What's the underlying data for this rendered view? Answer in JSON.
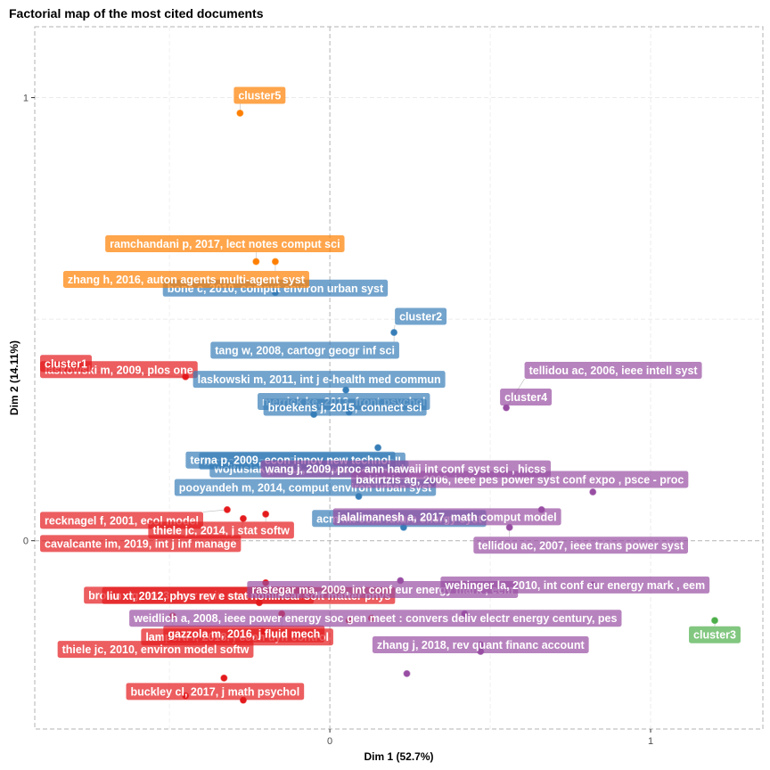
{
  "chart_data": {
    "type": "scatter",
    "title": "Factorial map of the most cited documents",
    "xlabel": "Dim 1 (52.7%)",
    "ylabel": "Dim 2 (14.11%)",
    "xlim": [
      -0.92,
      1.35
    ],
    "ylim": [
      -0.425,
      1.16
    ],
    "x_ticks": [
      0,
      1
    ],
    "y_ticks": [
      0,
      1
    ],
    "x_tick_labels": [
      "0",
      "1"
    ],
    "y_tick_labels": [
      "0",
      "1"
    ],
    "grid": true,
    "legend": "none",
    "series": [
      {
        "name": "cluster1",
        "color": "#e41a1c",
        "points": [
          {
            "x": -0.45,
            "y": 0.37
          },
          {
            "x": -0.32,
            "y": 0.07
          },
          {
            "x": -0.2,
            "y": 0.06
          },
          {
            "x": -0.27,
            "y": 0.05
          },
          {
            "x": -0.2,
            "y": -0.095
          },
          {
            "x": -0.22,
            "y": -0.14
          },
          {
            "x": -0.15,
            "y": -0.165
          },
          {
            "x": -0.49,
            "y": -0.17
          },
          {
            "x": -0.21,
            "y": -0.205
          },
          {
            "x": -0.33,
            "y": -0.31
          },
          {
            "x": -0.45,
            "y": -0.35
          },
          {
            "x": -0.27,
            "y": -0.36
          },
          {
            "x": 0.06,
            "y": -0.18
          },
          {
            "x": 0.13,
            "y": -0.175
          }
        ],
        "labels": [
          "laskowski m, 2009, plos one",
          "recknagel f, 2001, ecol model",
          "thiele jc, 2014, j stat softw",
          "cavalcante im, 2019, int j inf manage",
          "brown dg, 2013, curr opin environ sustain",
          "liu xt, 2012, phys rev e stat nonlinear soft matter phys",
          "lamperti f, 2018, j econ dyn control",
          "gazzola m, 2016, j fluid mech",
          "thiele jc, 2010, environ model softw",
          "buckley cl, 2017, j math psychol"
        ],
        "cluster_label": "cluster1"
      },
      {
        "name": "cluster2",
        "color": "#377eb8",
        "points": [
          {
            "x": 0.2,
            "y": 0.47
          },
          {
            "x": -0.17,
            "y": 0.56
          },
          {
            "x": 0.05,
            "y": 0.34
          },
          {
            "x": 0.06,
            "y": 0.29
          },
          {
            "x": -0.05,
            "y": 0.285
          },
          {
            "x": 0.15,
            "y": 0.21
          },
          {
            "x": 0.13,
            "y": 0.17
          },
          {
            "x": 0.03,
            "y": 0.17
          },
          {
            "x": 0.09,
            "y": 0.1
          },
          {
            "x": 0.23,
            "y": 0.03
          }
        ],
        "labels": [
          "tang w, 2008, cartogr geogr inf sci",
          "bone c, 2010, comput environ urban syst",
          "laskowski m, 2011, int j e-health med commun",
          "merrick ke, 2013, front psychol",
          "broekens j, 2015, connect sci",
          "mortazavi a, 2015, eng appl artif intell",
          "wojtusiak j, 2012, comput math appl",
          "terna p, 2009, econ innov new technol",
          "pooyandeh m, 2014, comput environ urban syst",
          "acm int conf future energy syst"
        ],
        "cluster_label": "cluster2"
      },
      {
        "name": "cluster3",
        "color": "#4daf4a",
        "points": [
          {
            "x": 1.2,
            "y": -0.18
          }
        ],
        "labels": [],
        "cluster_label": "cluster3"
      },
      {
        "name": "cluster4",
        "color": "#984ea3",
        "points": [
          {
            "x": 0.55,
            "y": 0.3
          },
          {
            "x": 0.82,
            "y": 0.11
          },
          {
            "x": 0.66,
            "y": 0.07
          },
          {
            "x": 0.32,
            "y": 0.13
          },
          {
            "x": 0.56,
            "y": 0.03
          },
          {
            "x": 0.22,
            "y": -0.09
          },
          {
            "x": 0.42,
            "y": -0.165
          },
          {
            "x": 0.82,
            "y": -0.1
          },
          {
            "x": 0.47,
            "y": -0.235
          },
          {
            "x": 0.47,
            "y": -0.25
          },
          {
            "x": 0.24,
            "y": -0.3
          }
        ],
        "labels": [
          "tellidou ac, 2006, ieee intell syst",
          "bakirtzis ag, 2006, ieee pes power syst conf expo , psce - proc",
          "jalalimanesh a, 2017, math comput model",
          "wang j, 2009, proc ann hawaii int conf syst sci , hicss",
          "tellidou ac, 2007, ieee trans power syst",
          "rastegar ma, 2009, int conf eur energy mark , eem",
          "weidlich a, 2008, ieee power energy soc gen meet : convers deliv electr energy century, pes",
          "wehinger la, 2010, int conf eur energy mark , eem",
          "zhang j, 2018, rev quant financ account"
        ],
        "cluster_label": "cluster4"
      },
      {
        "name": "cluster5",
        "color": "#ff7f00",
        "points": [
          {
            "x": -0.28,
            "y": 0.965
          },
          {
            "x": -0.23,
            "y": 0.63
          },
          {
            "x": -0.17,
            "y": 0.63
          }
        ],
        "labels": [
          "ramchandani p, 2017, lect notes comput sci",
          "zhang h, 2016, auton agents multi-agent syst"
        ],
        "cluster_label": "cluster5"
      }
    ]
  }
}
